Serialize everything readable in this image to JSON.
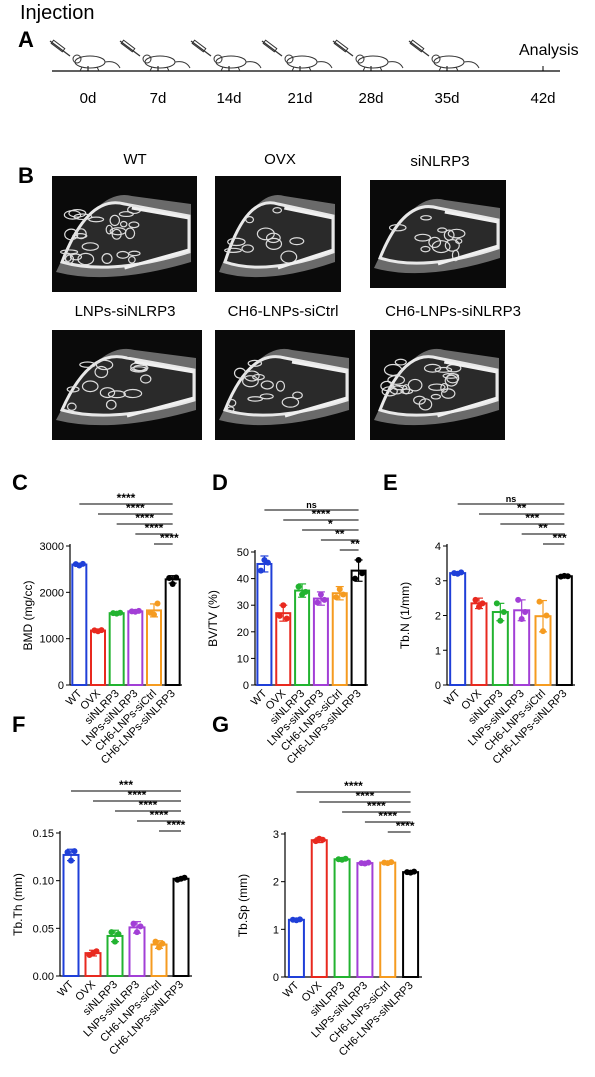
{
  "figure": {
    "panel_labels": [
      "A",
      "B",
      "C",
      "D",
      "E",
      "F",
      "G"
    ],
    "timeline": {
      "start_label": "Injection",
      "end_label": "Analysis",
      "days": [
        "0d",
        "7d",
        "14d",
        "21d",
        "28d",
        "35d",
        "42d"
      ],
      "icon": "syringe-mouse-icon"
    },
    "micro_ct": {
      "groups": [
        "WT",
        "OVX",
        "siNLRP3",
        "LNPs-siNLRP3",
        "CH6-LNPs-siCtrl",
        "CH6-LNPs-siNLRP3"
      ]
    }
  },
  "colors": [
    "#1f3fd8",
    "#e8291f",
    "#22b330",
    "#a23fd6",
    "#f59b20",
    "#000000"
  ],
  "chart_data": [
    {
      "id": "C",
      "type": "bar",
      "ylabel": "BMD (mg/cc)",
      "categories": [
        "WT",
        "OVX",
        "siNLRP3",
        "LNPs-siNLRP3",
        "CH6-LNPs-siCtrl",
        "CH6-LNPs-siNLRP3"
      ],
      "values": [
        2600,
        1175,
        1550,
        1590,
        1610,
        2280
      ],
      "errors": [
        25,
        25,
        20,
        20,
        140,
        80
      ],
      "points": [
        [
          2610,
          2580,
          2615
        ],
        [
          1180,
          1160,
          1185
        ],
        [
          1550,
          1540,
          1560
        ],
        [
          1590,
          1580,
          1600
        ],
        [
          1560,
          1520,
          1760
        ],
        [
          2310,
          2180,
          2320
        ]
      ],
      "ylim": [
        0,
        3000
      ],
      "yticks": [
        0,
        1000,
        2000,
        3000
      ],
      "significance": [
        "****",
        "****",
        "****",
        "****",
        "****"
      ]
    },
    {
      "id": "D",
      "type": "bar",
      "ylabel": "BV/TV (%)",
      "categories": [
        "WT",
        "OVX",
        "siNLRP3",
        "LNPs-siNLRP3",
        "CH6-LNPs-siCtrl",
        "CH6-LNPs-siNLRP3"
      ],
      "values": [
        45.5,
        27,
        35.5,
        32.5,
        34.5,
        43
      ],
      "errors": [
        3,
        3,
        2.5,
        2.5,
        2.5,
        4
      ],
      "points": [
        [
          43,
          47,
          46
        ],
        [
          26,
          30,
          25
        ],
        [
          37,
          34,
          35
        ],
        [
          31,
          34,
          32
        ],
        [
          33,
          36,
          34
        ],
        [
          40,
          47,
          42
        ]
      ],
      "ylim": [
        0,
        50
      ],
      "yticks": [
        0,
        10,
        20,
        30,
        40,
        50
      ],
      "significance": [
        "ns",
        "****",
        "*",
        "**",
        "**"
      ]
    },
    {
      "id": "E",
      "type": "bar",
      "ylabel": "Tb.N (1/mm)",
      "categories": [
        "WT",
        "OVX",
        "siNLRP3",
        "LNPs-siNLRP3",
        "CH6-LNPs-siCtrl",
        "CH6-LNPs-siNLRP3"
      ],
      "values": [
        3.22,
        2.35,
        2.1,
        2.15,
        1.98,
        3.13
      ],
      "errors": [
        0.03,
        0.15,
        0.25,
        0.3,
        0.45,
        0.03
      ],
      "points": [
        [
          3.22,
          3.2,
          3.24
        ],
        [
          2.45,
          2.25,
          2.35
        ],
        [
          2.35,
          1.85,
          2.1
        ],
        [
          2.45,
          1.9,
          2.1
        ],
        [
          2.4,
          1.55,
          2.0
        ],
        [
          3.12,
          3.14,
          3.13
        ]
      ],
      "ylim": [
        0,
        4
      ],
      "yticks": [
        0,
        1,
        2,
        3,
        4
      ],
      "significance": [
        "ns",
        "**",
        "***",
        "**",
        "***"
      ]
    },
    {
      "id": "F",
      "type": "bar",
      "ylabel": "Tb.Th (mm)",
      "categories": [
        "WT",
        "OVX",
        "siNLRP3",
        "LNPs-siNLRP3",
        "CH6-LNPs-siCtrl",
        "CH6-LNPs-siNLRP3"
      ],
      "values": [
        0.127,
        0.024,
        0.042,
        0.051,
        0.033,
        0.102
      ],
      "errors": [
        0.006,
        0.003,
        0.006,
        0.006,
        0.004,
        0.001
      ],
      "points": [
        [
          0.13,
          0.121,
          0.131
        ],
        [
          0.022,
          0.024,
          0.026
        ],
        [
          0.046,
          0.036,
          0.044
        ],
        [
          0.055,
          0.046,
          0.052
        ],
        [
          0.036,
          0.03,
          0.034
        ],
        [
          0.101,
          0.102,
          0.103
        ]
      ],
      "ylim": [
        0,
        0.15
      ],
      "yticks": [
        0,
        0.05,
        0.1,
        0.15
      ],
      "ytick_labels": [
        "0.00",
        "0.05",
        "0.10",
        "0.15"
      ],
      "significance": [
        "***",
        "****",
        "****",
        "****",
        "****"
      ]
    },
    {
      "id": "G",
      "type": "bar",
      "ylabel": "Tb.Sp (mm)",
      "categories": [
        "WT",
        "OVX",
        "siNLRP3",
        "LNPs-siNLRP3",
        "CH6-LNPs-siCtrl",
        "CH6-LNPs-siNLRP3"
      ],
      "values": [
        1.2,
        2.87,
        2.47,
        2.39,
        2.4,
        2.2
      ],
      "errors": [
        0.02,
        0.05,
        0.03,
        0.02,
        0.02,
        0.02
      ],
      "points": [
        [
          1.2,
          1.19,
          1.21
        ],
        [
          2.85,
          2.9,
          2.88
        ],
        [
          2.47,
          2.46,
          2.48
        ],
        [
          2.39,
          2.38,
          2.4
        ],
        [
          2.4,
          2.39,
          2.41
        ],
        [
          2.2,
          2.19,
          2.21
        ]
      ],
      "ylim": [
        0,
        3
      ],
      "yticks": [
        0,
        1,
        2,
        3
      ],
      "significance": [
        "****",
        "****",
        "****",
        "****",
        "****"
      ]
    }
  ]
}
